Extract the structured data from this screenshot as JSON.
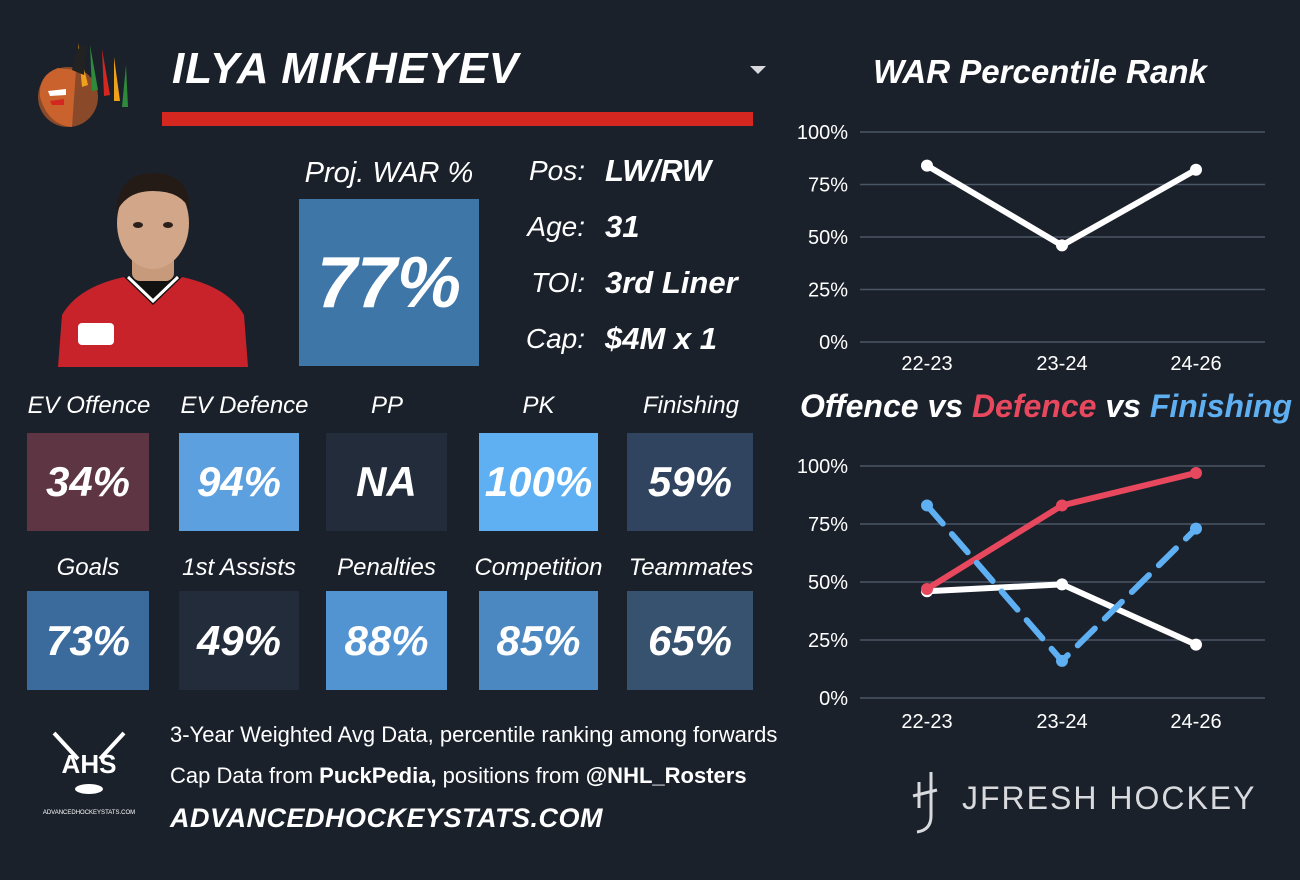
{
  "header": {
    "player_name": "ILYA MIKHEYEV",
    "team_logo_icon": "blackhawks-logo-icon",
    "accent_color": "#d3271f"
  },
  "projection": {
    "label": "Proj. WAR %",
    "value": "77%",
    "color": "#3f76a8"
  },
  "info": [
    {
      "label": "Pos:",
      "value": "LW/RW"
    },
    {
      "label": "Age:",
      "value": "31"
    },
    {
      "label": "TOI:",
      "value": "3rd Liner"
    },
    {
      "label": "Cap:",
      "value": "$4M x 1"
    }
  ],
  "stats_row1": [
    {
      "label": "EV Offence",
      "value": "34%",
      "color": "#5e3543"
    },
    {
      "label": "EV Defence",
      "value": "94%",
      "color": "#5ca0e0"
    },
    {
      "label": "PP",
      "value": "NA",
      "color": "#222c3a"
    },
    {
      "label": "PK",
      "value": "100%",
      "color": "#5eb0f2"
    },
    {
      "label": "Finishing",
      "value": "59%",
      "color": "#30445f"
    }
  ],
  "stats_row2": [
    {
      "label": "Goals",
      "value": "73%",
      "color": "#3a6b9c"
    },
    {
      "label": "1st Assists",
      "value": "49%",
      "color": "#222c3a"
    },
    {
      "label": "Penalties",
      "value": "88%",
      "color": "#5294d2"
    },
    {
      "label": "Competition",
      "value": "85%",
      "color": "#4b87c0"
    },
    {
      "label": "Teammates",
      "value": "65%",
      "color": "#37526f"
    }
  ],
  "footer": {
    "line1": "3-Year Weighted Avg Data, percentile ranking among forwards",
    "line2_prefix": "Cap Data from ",
    "line2_bold1": "PuckPedia,",
    "line2_mid": " positions from ",
    "line2_bold2": "@NHL_Rosters",
    "site": "ADVANCEDHOCKEYSTATS.COM",
    "ahs_logo_text": "AHS",
    "ahs_logo_subtext": "ADVANCEDHOCKEYSTATS.COM",
    "jfresh_text": "JFRESH HOCKEY"
  },
  "chart_data": [
    {
      "type": "line",
      "title": "WAR Percentile Rank",
      "x": [
        "22-23",
        "23-24",
        "24-26"
      ],
      "series": [
        {
          "values": [
            84,
            46,
            82
          ],
          "color": "#ffffff",
          "dashed": false
        }
      ],
      "ylim": [
        0,
        100
      ],
      "yticks": [
        "0%",
        "25%",
        "50%",
        "75%",
        "100%"
      ],
      "grid": true
    },
    {
      "type": "line",
      "title_parts": [
        {
          "text": "Offence",
          "color": "#ffffff"
        },
        {
          "text": " vs ",
          "color": "#ffffff"
        },
        {
          "text": "Defence",
          "color": "#e8485e"
        },
        {
          "text": " vs ",
          "color": "#ffffff"
        },
        {
          "text": "Finishing",
          "color": "#5eb0f2"
        }
      ],
      "x": [
        "22-23",
        "23-24",
        "24-26"
      ],
      "series": [
        {
          "name": "Offence",
          "values": [
            46,
            49,
            23
          ],
          "color": "#ffffff",
          "dashed": false
        },
        {
          "name": "Defence",
          "values": [
            47,
            83,
            97
          ],
          "color": "#e8485e",
          "dashed": false
        },
        {
          "name": "Finishing",
          "values": [
            83,
            16,
            73
          ],
          "color": "#5eb0f2",
          "dashed": true
        }
      ],
      "ylim": [
        0,
        100
      ],
      "yticks": [
        "0%",
        "25%",
        "50%",
        "75%",
        "100%"
      ],
      "grid": true
    }
  ]
}
